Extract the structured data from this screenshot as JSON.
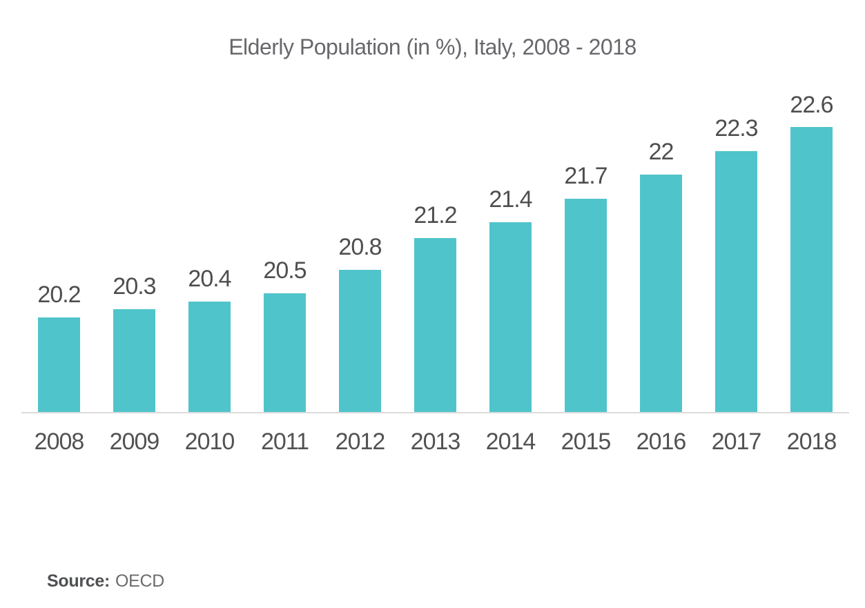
{
  "title": "Elderly Population (in %), Italy, 2008 - 2018",
  "source": {
    "label": "Source:",
    "value": "OECD"
  },
  "chart_data": {
    "type": "bar",
    "title": "Elderly Population (in %), Italy, 2008 - 2018",
    "categories": [
      "2008",
      "2009",
      "2010",
      "2011",
      "2012",
      "2013",
      "2014",
      "2015",
      "2016",
      "2017",
      "2018"
    ],
    "values": [
      20.2,
      20.3,
      20.4,
      20.5,
      20.8,
      21.2,
      21.4,
      21.7,
      22,
      22.3,
      22.6
    ],
    "value_labels": [
      "20.2",
      "20.3",
      "20.4",
      "20.5",
      "20.8",
      "21.2",
      "21.4",
      "21.7",
      "22",
      "22.3",
      "22.6"
    ],
    "xlabel": "",
    "ylabel": "",
    "ylim": [
      19,
      22.9
    ],
    "grid": false,
    "legend_position": "none",
    "colors": {
      "bar": "#50C4CB",
      "axis_line": "#DBDBDB",
      "value_label": "#4E4E50",
      "tick_label": "#525254",
      "title": "#67686B",
      "source_label": "#4F5052",
      "source_value": "#6A6B6D",
      "background": "#FFFFFF"
    }
  }
}
